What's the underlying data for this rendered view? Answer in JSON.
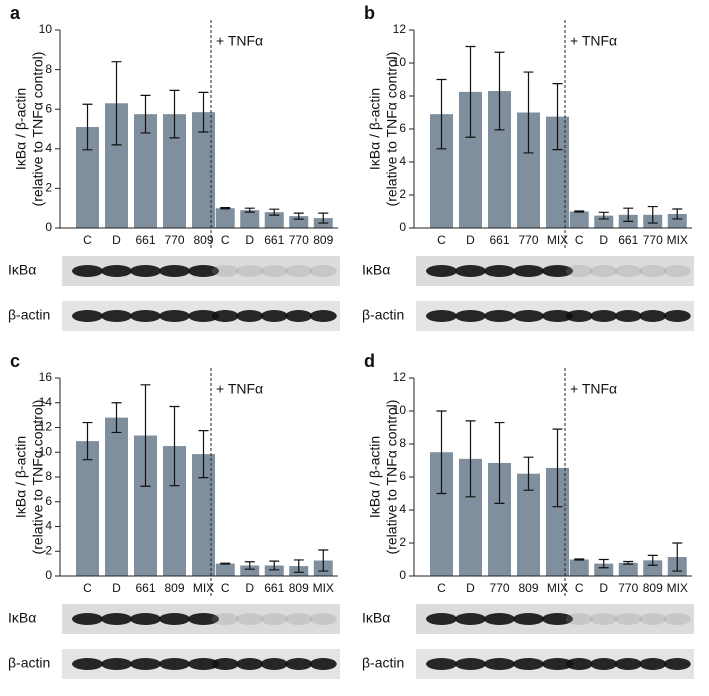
{
  "chart_data": [
    {
      "type": "bar",
      "panel": "a",
      "ylabel": [
        "IκBα / β-actin",
        "(relative to TNFα control)"
      ],
      "annotation": "+ TNFα",
      "categories": [
        "C",
        "D",
        "661",
        "770",
        "809",
        "C",
        "D",
        "661",
        "770",
        "809"
      ],
      "values": [
        5.1,
        6.3,
        5.75,
        5.75,
        5.85,
        1.0,
        0.9,
        0.8,
        0.6,
        0.5
      ],
      "errors": [
        1.15,
        2.1,
        0.95,
        1.2,
        1.0,
        0.03,
        0.1,
        0.15,
        0.15,
        0.25
      ],
      "color": "#7f8f9e",
      "ylim": [
        0,
        10
      ],
      "yticks": [
        0,
        2,
        4,
        6,
        8,
        10
      ],
      "blots": [
        "IκBα",
        "β-actin"
      ]
    },
    {
      "type": "bar",
      "panel": "b",
      "ylabel": [
        "IκBα / β-actin",
        "(relative to TNFα control)"
      ],
      "annotation": "+ TNFα",
      "categories": [
        "C",
        "D",
        "661",
        "770",
        "MIX",
        "C",
        "D",
        "661",
        "770",
        "MIX"
      ],
      "values": [
        6.9,
        8.25,
        8.3,
        7.0,
        6.75,
        1.0,
        0.75,
        0.8,
        0.8,
        0.85
      ],
      "errors": [
        2.1,
        2.75,
        2.35,
        2.45,
        2.0,
        0.03,
        0.2,
        0.4,
        0.5,
        0.3
      ],
      "color": "#7f8f9e",
      "ylim": [
        0,
        12
      ],
      "yticks": [
        0,
        2,
        4,
        6,
        8,
        10,
        12
      ],
      "blots": [
        "IκBα",
        "β-actin"
      ]
    },
    {
      "type": "bar",
      "panel": "c",
      "ylabel": [
        "IκBα / β-actin",
        "(relative to TNFα control)"
      ],
      "annotation": "+ TNFα",
      "categories": [
        "C",
        "D",
        "661",
        "809",
        "MIX",
        "C",
        "D",
        "661",
        "809",
        "MIX"
      ],
      "values": [
        10.9,
        12.8,
        11.35,
        10.5,
        9.85,
        1.0,
        0.85,
        0.85,
        0.8,
        1.25
      ],
      "errors": [
        1.5,
        1.2,
        4.1,
        3.2,
        1.9,
        0.03,
        0.3,
        0.35,
        0.5,
        0.85
      ],
      "color": "#7f8f9e",
      "ylim": [
        0,
        16
      ],
      "yticks": [
        0,
        2,
        4,
        6,
        8,
        10,
        12,
        14,
        16
      ],
      "blots": [
        "IκBα",
        "β-actin"
      ]
    },
    {
      "type": "bar",
      "panel": "d",
      "ylabel": [
        "IκBα / β-actin",
        "(relative to TNFα control)"
      ],
      "annotation": "+ TNFα",
      "categories": [
        "C",
        "D",
        "770",
        "809",
        "MIX",
        "C",
        "D",
        "770",
        "809",
        "MIX"
      ],
      "values": [
        7.5,
        7.1,
        6.85,
        6.2,
        6.55,
        1.0,
        0.75,
        0.8,
        0.95,
        1.15
      ],
      "errors": [
        2.5,
        2.3,
        2.45,
        1.0,
        2.35,
        0.03,
        0.25,
        0.08,
        0.3,
        0.85
      ],
      "color": "#7f8f9e",
      "ylim": [
        0,
        12
      ],
      "yticks": [
        0,
        2,
        4,
        6,
        8,
        10,
        12
      ],
      "blots": [
        "IκBα",
        "β-actin"
      ]
    }
  ]
}
